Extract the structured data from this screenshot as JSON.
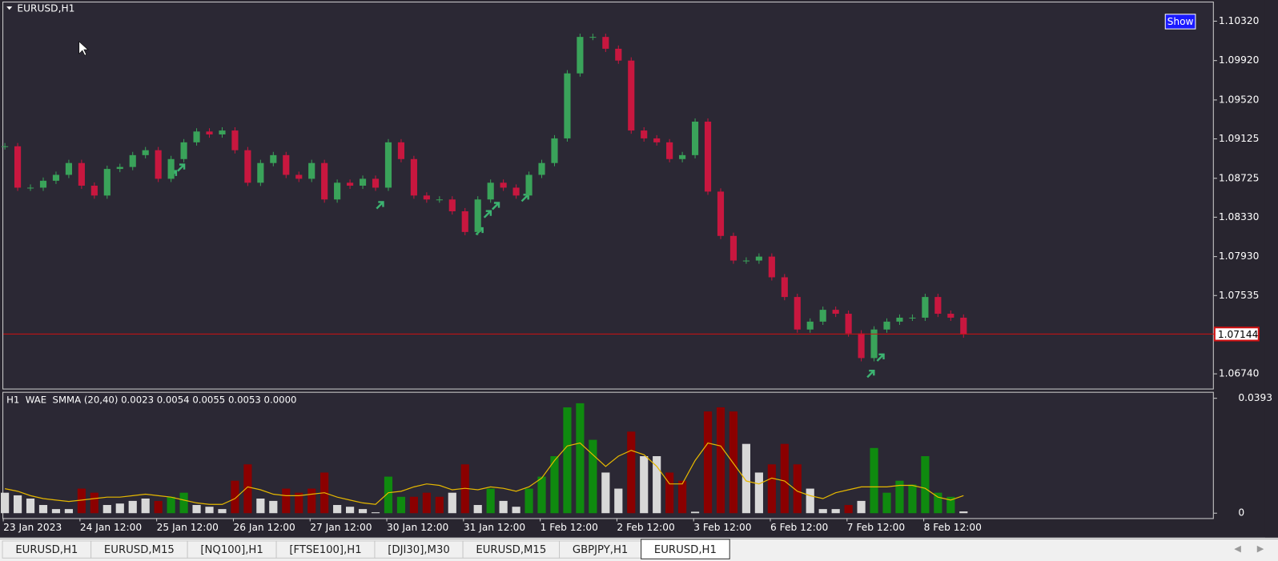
{
  "window": {
    "symbol": "EURUSD,H1",
    "button": "Show"
  },
  "chart_data": [
    {
      "type": "candlestick",
      "closes": [
        1.0905,
        1.0863,
        1.0863,
        1.087,
        1.0876,
        1.0888,
        1.0865,
        1.0855,
        1.0882,
        1.0884,
        1.0896,
        1.0901,
        1.0872,
        1.0892,
        1.0909,
        1.092,
        1.0917,
        1.0921,
        1.0901,
        1.0868,
        1.0888,
        1.0896,
        1.0876,
        1.0872,
        1.0888,
        1.0851,
        1.0868,
        1.0865,
        1.0872,
        1.0863,
        1.0909,
        1.0892,
        1.0855,
        1.0851,
        1.0851,
        1.0839,
        1.0818,
        1.0851,
        1.0868,
        1.0863,
        1.0855,
        1.0876,
        1.0888,
        1.0913,
        1.0979,
        1.1016,
        1.1016,
        1.1004,
        1.0992,
        1.0921,
        1.0913,
        1.0909,
        1.0892,
        1.0896,
        1.093,
        1.0859,
        1.0814,
        1.0789,
        1.0789,
        1.0793,
        1.0772,
        1.0752,
        1.0719,
        1.0727,
        1.0739,
        1.0735,
        1.0715,
        1.069,
        1.0719,
        1.0727,
        1.0731,
        1.0731,
        1.0752,
        1.0735,
        1.0731,
        1.0714
      ],
      "color_up": "#3aa35a",
      "color_down": "#c8173f",
      "ylim": [
        1.0659,
        1.1051
      ],
      "yticks": [
        {
          "value": 1.0674,
          "label": "1.06740"
        },
        1.07535,
        {
          "value": 1.0793,
          "label": "1.07930"
        },
        {
          "value": 1.0833,
          "label": "1.08330"
        },
        1.08725,
        1.09125,
        {
          "value": 1.0952,
          "label": "1.09520"
        },
        {
          "value": 1.0992,
          "label": "1.09920"
        },
        {
          "value": 1.1032,
          "label": "1.10320"
        }
      ],
      "current_price": 1.07144,
      "current_price_color": "#d01010"
    },
    {
      "type": "bar",
      "title": "H1  WAE  SMMA (20,40) 0.0023 0.0054 0.0055 0.0053 0.0000",
      "values": [
        0.007,
        0.0061,
        0.005,
        0.0028,
        0.0014,
        0.0014,
        0.0084,
        0.007,
        0.0028,
        0.0033,
        0.0042,
        0.005,
        0.0042,
        0.0056,
        0.007,
        0.0028,
        0.0022,
        0.0014,
        0.0111,
        0.0167,
        0.005,
        0.0042,
        0.0084,
        0.007,
        0.0084,
        0.0139,
        0.0028,
        0.0022,
        0.0014,
        0.0003,
        0.0125,
        0.0056,
        0.0056,
        0.007,
        0.0056,
        0.007,
        0.0167,
        0.0028,
        0.0084,
        0.0042,
        0.0022,
        0.0084,
        0.0125,
        0.0195,
        0.0362,
        0.0376,
        0.0251,
        0.0139,
        0.0084,
        0.0279,
        0.0195,
        0.0195,
        0.0139,
        0.0111,
        0.0005,
        0.0348,
        0.0362,
        0.0348,
        0.0237,
        0.0139,
        0.0167,
        0.0237,
        0.0167,
        0.0084,
        0.0014,
        0.0014,
        0.0028,
        0.0042,
        0.0223,
        0.007,
        0.0111,
        0.0098,
        0.0195,
        0.007,
        0.0056,
        0.0006
      ],
      "colors": [
        "#d8d8d8",
        "#d8d8d8",
        "#d8d8d8",
        "#d8d8d8",
        "#d8d8d8",
        "#d8d8d8",
        "#8b0000",
        "#8b0000",
        "#d8d8d8",
        "#d8d8d8",
        "#d8d8d8",
        "#d8d8d8",
        "#8b0000",
        "#0f8a0f",
        "#0f8a0f",
        "#d8d8d8",
        "#d8d8d8",
        "#d8d8d8",
        "#8b0000",
        "#8b0000",
        "#d8d8d8",
        "#d8d8d8",
        "#8b0000",
        "#8b0000",
        "#8b0000",
        "#8b0000",
        "#d8d8d8",
        "#d8d8d8",
        "#d8d8d8",
        "#d8d8d8",
        "#0f8a0f",
        "#0f8a0f",
        "#8b0000",
        "#8b0000",
        "#8b0000",
        "#d8d8d8",
        "#8b0000",
        "#d8d8d8",
        "#0f8a0f",
        "#d8d8d8",
        "#d8d8d8",
        "#0f8a0f",
        "#0f8a0f",
        "#0f8a0f",
        "#0f8a0f",
        "#0f8a0f",
        "#0f8a0f",
        "#d8d8d8",
        "#d8d8d8",
        "#8b0000",
        "#d8d8d8",
        "#d8d8d8",
        "#8b0000",
        "#8b0000",
        "#d8d8d8",
        "#8b0000",
        "#8b0000",
        "#8b0000",
        "#d8d8d8",
        "#d8d8d8",
        "#8b0000",
        "#8b0000",
        "#8b0000",
        "#d8d8d8",
        "#d8d8d8",
        "#d8d8d8",
        "#8b0000",
        "#d8d8d8",
        "#0f8a0f",
        "#0f8a0f",
        "#0f8a0f",
        "#0f8a0f",
        "#0f8a0f",
        "#0f8a0f",
        "#0f8a0f",
        "#d8d8d8"
      ],
      "signal": {
        "color": "#e6b800",
        "values": [
          0.0084,
          0.0075,
          0.006,
          0.005,
          0.0045,
          0.004,
          0.0045,
          0.005,
          0.0055,
          0.0055,
          0.006,
          0.0065,
          0.006,
          0.0055,
          0.0045,
          0.0035,
          0.003,
          0.003,
          0.005,
          0.009,
          0.008,
          0.0065,
          0.006,
          0.006,
          0.0065,
          0.007,
          0.0055,
          0.0045,
          0.0035,
          0.003,
          0.007,
          0.0075,
          0.009,
          0.01,
          0.0095,
          0.008,
          0.0085,
          0.008,
          0.009,
          0.0085,
          0.0075,
          0.009,
          0.012,
          0.018,
          0.023,
          0.024,
          0.02,
          0.016,
          0.0195,
          0.0215,
          0.02,
          0.016,
          0.01,
          0.01,
          0.018,
          0.024,
          0.023,
          0.017,
          0.011,
          0.01,
          0.012,
          0.011,
          0.0075,
          0.006,
          0.005,
          0.007,
          0.008,
          0.009,
          0.009,
          0.009,
          0.0095,
          0.0095,
          0.0085,
          0.0055,
          0.0045,
          0.006
        ]
      },
      "ylim": [
        -0.0017,
        0.0415
      ],
      "yticks": [
        0,
        0.0393
      ],
      "xticks": [
        "23 Jan 2023",
        "24 Jan 12:00",
        "25 Jan 12:00",
        "26 Jan 12:00",
        "27 Jan 12:00",
        "30 Jan 12:00",
        "31 Jan 12:00",
        "1 Feb 12:00",
        "2 Feb 12:00",
        "3 Feb 12:00",
        "6 Feb 12:00",
        "7 Feb 12:00",
        "8 Feb 12:00"
      ]
    }
  ],
  "tabs": [
    "EURUSD,H1",
    "EURUSD,M15",
    "[NQ100],H1",
    "[FTSE100],H1",
    "[DJI30],M30",
    "EURUSD,M15",
    "GBPJPY,H1",
    "EURUSD,H1"
  ],
  "active_tab": 7
}
